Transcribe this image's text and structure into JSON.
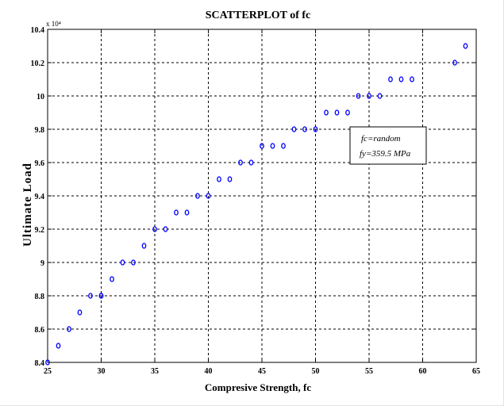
{
  "chart_data": {
    "type": "scatter",
    "title": "SCATTERPLOT of fc",
    "xlabel": "Compresive Strength, fc",
    "ylabel": "Ultimate Load",
    "y_multiplier": "x 10⁴",
    "xlim": [
      25,
      65
    ],
    "ylim": [
      8.4,
      10.4
    ],
    "y_scale_factor": 10000,
    "x_ticks": [
      25,
      30,
      35,
      40,
      45,
      50,
      55,
      60,
      65
    ],
    "y_ticks": [
      8.4,
      8.6,
      8.8,
      9.0,
      9.2,
      9.4,
      9.6,
      9.8,
      10.0,
      10.2,
      10.4
    ],
    "y_tick_labels": [
      "8.4",
      "8.6",
      "8.8",
      "9",
      "9.2",
      "9.4",
      "9.6",
      "9.8",
      "10",
      "10.2",
      "10.4"
    ],
    "grid": true,
    "marker_color": "#0000ff",
    "legend_lines": [
      "fc=random",
      "fy=359.5 MPa"
    ],
    "series": [
      {
        "x": [
          25,
          26,
          27,
          28,
          29,
          30,
          30,
          31,
          32,
          33,
          34,
          35,
          36,
          37,
          38,
          39,
          40,
          41,
          42,
          43,
          44,
          45,
          46,
          47,
          48,
          49,
          50,
          51,
          52,
          53,
          54,
          55,
          56,
          57,
          58,
          59,
          63,
          64
        ],
        "y": [
          8.4,
          8.5,
          8.6,
          8.7,
          8.8,
          8.8,
          8.8,
          8.9,
          9.0,
          9.0,
          9.1,
          9.2,
          9.2,
          9.3,
          9.3,
          9.4,
          9.4,
          9.5,
          9.5,
          9.6,
          9.6,
          9.7,
          9.7,
          9.7,
          9.8,
          9.8,
          9.8,
          9.9,
          9.9,
          9.9,
          10.0,
          10.0,
          10.0,
          10.1,
          10.1,
          10.1,
          10.2,
          10.3
        ]
      }
    ]
  }
}
